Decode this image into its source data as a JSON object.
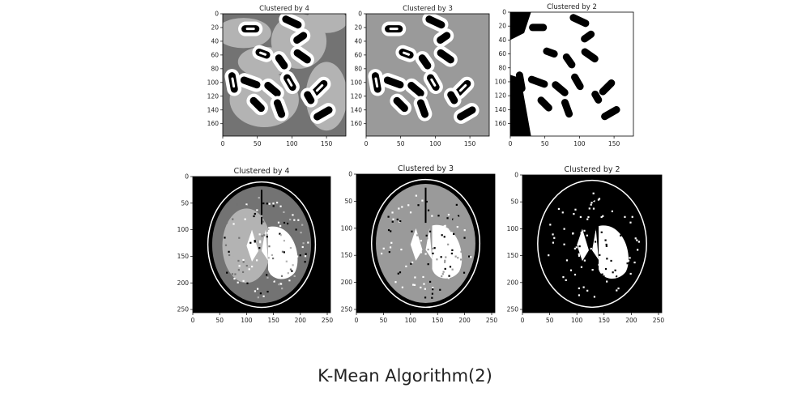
{
  "caption": "K-Mean Algorithm(2)",
  "colors": {
    "c4_levels": [
      "#000000",
      "#737373",
      "#b3b3b3",
      "#ffffff"
    ],
    "c3_levels": [
      "#000000",
      "#9a9a9a",
      "#ffffff"
    ],
    "c2_levels": [
      "#000000",
      "#ffffff"
    ]
  },
  "panels": [
    {
      "id": "bacteria-k4",
      "kind": "bacteria",
      "k": 4,
      "title": "Clustered by 4",
      "x_ticks": [
        "0",
        "50",
        "100",
        "150"
      ],
      "y_ticks": [
        "0",
        "20",
        "40",
        "60",
        "80",
        "100",
        "120",
        "140",
        "160"
      ],
      "xlim": [
        0,
        178
      ],
      "ylim": [
        0,
        178
      ]
    },
    {
      "id": "bacteria-k3",
      "kind": "bacteria",
      "k": 3,
      "title": "Clustered by 3",
      "x_ticks": [
        "0",
        "50",
        "100",
        "150"
      ],
      "y_ticks": [
        "0",
        "20",
        "40",
        "60",
        "80",
        "100",
        "120",
        "140",
        "160"
      ],
      "xlim": [
        0,
        178
      ],
      "ylim": [
        0,
        178
      ]
    },
    {
      "id": "bacteria-k2",
      "kind": "bacteria",
      "k": 2,
      "title": "Clustered by 2",
      "x_ticks": [
        "0",
        "50",
        "100",
        "150"
      ],
      "y_ticks": [
        "0",
        "20",
        "40",
        "60",
        "80",
        "100",
        "120",
        "140",
        "160"
      ],
      "xlim": [
        0,
        178
      ],
      "ylim": [
        0,
        178
      ]
    },
    {
      "id": "brain-k4",
      "kind": "brain",
      "k": 4,
      "title": "Clustered by 4",
      "x_ticks": [
        "0",
        "50",
        "100",
        "150",
        "200",
        "250"
      ],
      "y_ticks": [
        "0",
        "50",
        "100",
        "150",
        "200",
        "250"
      ],
      "xlim": [
        0,
        256
      ],
      "ylim": [
        0,
        256
      ]
    },
    {
      "id": "brain-k3",
      "kind": "brain",
      "k": 3,
      "title": "Clustered by 3",
      "x_ticks": [
        "0",
        "50",
        "100",
        "150",
        "200",
        "250"
      ],
      "y_ticks": [
        "0",
        "50",
        "100",
        "150",
        "200",
        "250"
      ],
      "xlim": [
        0,
        256
      ],
      "ylim": [
        0,
        256
      ]
    },
    {
      "id": "brain-k2",
      "kind": "brain",
      "k": 2,
      "title": "Clustered by 2",
      "x_ticks": [
        "0",
        "50",
        "100",
        "150",
        "200",
        "250"
      ],
      "y_ticks": [
        "0",
        "50",
        "100",
        "150",
        "200",
        "250"
      ],
      "xlim": [
        0,
        256
      ],
      "ylim": [
        0,
        256
      ]
    }
  ]
}
